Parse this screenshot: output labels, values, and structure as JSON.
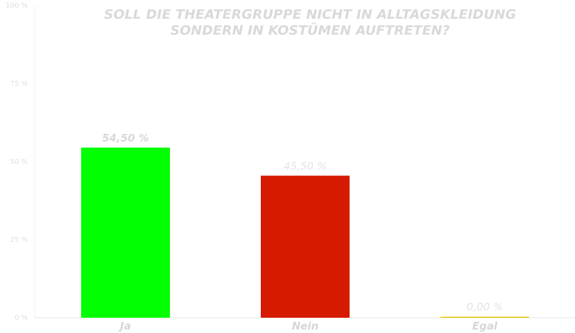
{
  "chart_data": {
    "type": "bar",
    "title_lines": [
      "SOLL DIE THEATERGRUPPE NICHT IN ALLTAGSKLEIDUNG",
      "SONDERN IN KOSTÜMEN AUFTRETEN?"
    ],
    "categories": [
      "Ja",
      "Nein",
      "Egal"
    ],
    "values": [
      54.5,
      45.5,
      0.0
    ],
    "value_labels": [
      "54,50 %",
      "45,50 %",
      "0,00 %"
    ],
    "colors": [
      "#00ff00",
      "#d61a00",
      "#e8c800"
    ],
    "ylim": [
      0,
      100
    ],
    "yticks": [
      0,
      25,
      50,
      75,
      100
    ],
    "ytick_labels": [
      "0 %",
      "25 %",
      "50 %",
      "75 %",
      "100 %"
    ],
    "grid": false,
    "legend": "none"
  }
}
